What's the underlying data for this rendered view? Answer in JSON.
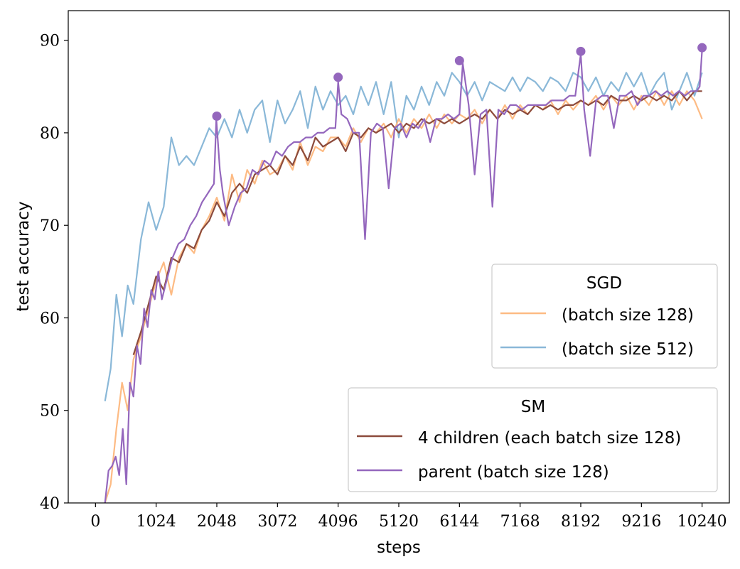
{
  "chart_data": {
    "type": "line",
    "xlabel": "steps",
    "ylabel": "test accuracy",
    "xlim": [
      -460,
      10700
    ],
    "ylim": [
      40,
      93.2
    ],
    "xticks": [
      0,
      1024,
      2048,
      3072,
      4096,
      5120,
      6144,
      7168,
      8192,
      9216,
      10240
    ],
    "yticks": [
      40,
      50,
      60,
      70,
      80,
      90
    ],
    "grid": false,
    "legends": [
      {
        "title": "SGD",
        "placement": "center-right",
        "entries": [
          {
            "label": "(batch size 128)",
            "series": "sgd128"
          },
          {
            "label": "(batch size 512)",
            "series": "sgd512"
          }
        ]
      },
      {
        "title": "SM",
        "placement": "lower-right",
        "entries": [
          {
            "label": "4 children (each batch size 128)",
            "series": "children"
          },
          {
            "label": "parent (batch size 128)",
            "series": "parent"
          }
        ]
      }
    ],
    "series": [
      {
        "key": "sgd512",
        "color": "#8ab8d8",
        "x": [
          160,
          256,
          352,
          448,
          544,
          640,
          768,
          896,
          1024,
          1152,
          1280,
          1408,
          1536,
          1664,
          1792,
          1920,
          2048,
          2176,
          2304,
          2432,
          2560,
          2688,
          2816,
          2944,
          3072,
          3200,
          3328,
          3456,
          3584,
          3712,
          3840,
          3968,
          4096,
          4224,
          4352,
          4480,
          4608,
          4736,
          4864,
          4992,
          5120,
          5248,
          5376,
          5504,
          5632,
          5760,
          5888,
          6016,
          6144,
          6272,
          6400,
          6528,
          6656,
          6784,
          6912,
          7040,
          7168,
          7296,
          7424,
          7552,
          7680,
          7808,
          7936,
          8064,
          8192,
          8320,
          8448,
          8576,
          8704,
          8832,
          8960,
          9088,
          9216,
          9344,
          9472,
          9600,
          9728,
          9856,
          9984,
          10112,
          10240
        ],
        "y": [
          51,
          54.5,
          62.5,
          58,
          63.5,
          61.5,
          68.5,
          72.5,
          69.5,
          72,
          79.5,
          76.5,
          77.5,
          76.5,
          78.5,
          80.5,
          79.5,
          81.5,
          79.5,
          82.5,
          80,
          82.5,
          83.5,
          79,
          83.5,
          81,
          82.5,
          84.5,
          80.5,
          85,
          82.5,
          84.5,
          83,
          84,
          82,
          85,
          83,
          85.5,
          82,
          85.5,
          79.5,
          84,
          82.5,
          85,
          83,
          85.5,
          84,
          86.5,
          85.5,
          84,
          85.5,
          83.5,
          85.5,
          85,
          84.5,
          86,
          84.5,
          86,
          85.5,
          84.5,
          86,
          85.5,
          84.5,
          86.5,
          86,
          84.5,
          86,
          84,
          85.5,
          84.5,
          86.5,
          85,
          86.5,
          84,
          85.5,
          86.5,
          82.5,
          84.5,
          86.5,
          84,
          86.5
        ]
      },
      {
        "key": "sgd128",
        "color": "#fdbb84",
        "x": [
          160,
          256,
          352,
          448,
          544,
          640,
          768,
          896,
          1024,
          1152,
          1280,
          1408,
          1536,
          1664,
          1792,
          1920,
          2048,
          2176,
          2304,
          2432,
          2560,
          2688,
          2816,
          2944,
          3072,
          3200,
          3328,
          3456,
          3584,
          3712,
          3840,
          3968,
          4096,
          4224,
          4352,
          4480,
          4608,
          4736,
          4864,
          4992,
          5120,
          5248,
          5376,
          5504,
          5632,
          5760,
          5888,
          6016,
          6144,
          6272,
          6400,
          6528,
          6656,
          6784,
          6912,
          7040,
          7168,
          7296,
          7424,
          7552,
          7680,
          7808,
          7936,
          8064,
          8192,
          8320,
          8448,
          8576,
          8704,
          8832,
          8960,
          9088,
          9216,
          9344,
          9472,
          9600,
          9728,
          9856,
          9984,
          10112,
          10240
        ],
        "y": [
          40,
          42,
          48,
          53,
          50,
          55.5,
          58,
          61,
          64,
          66,
          62.5,
          66.5,
          68,
          67,
          69.5,
          71,
          73,
          70.5,
          75.5,
          72.5,
          76,
          74.5,
          77,
          75.5,
          76,
          77.5,
          76,
          79,
          76.5,
          78.5,
          78,
          79.5,
          79.5,
          78.5,
          80.5,
          79,
          80.5,
          80,
          81,
          79.5,
          81.5,
          80,
          81.5,
          80.5,
          82,
          80.5,
          82,
          81,
          82,
          81.5,
          82.5,
          81,
          82.5,
          81.5,
          83,
          81.5,
          83,
          82,
          83,
          82.5,
          83.5,
          82,
          83.5,
          82.5,
          83.5,
          83,
          84,
          82.5,
          84,
          83,
          84,
          82.5,
          84,
          83,
          84.5,
          83,
          84.5,
          83,
          84.5,
          83.5,
          81.5
        ]
      },
      {
        "key": "children",
        "color": "#8c4b3c",
        "x": [
          640,
          768,
          896,
          1024,
          1152,
          1280,
          1408,
          1536,
          1664,
          1792,
          1920,
          2048,
          2176,
          2304,
          2432,
          2560,
          2688,
          2816,
          2944,
          3072,
          3200,
          3328,
          3456,
          3584,
          3712,
          3840,
          3968,
          4096,
          4224,
          4352,
          4480,
          4608,
          4736,
          4864,
          4992,
          5120,
          5248,
          5376,
          5504,
          5632,
          5760,
          5888,
          6016,
          6144,
          6272,
          6400,
          6528,
          6656,
          6784,
          6912,
          7040,
          7168,
          7296,
          7424,
          7552,
          7680,
          7808,
          7936,
          8064,
          8192,
          8320,
          8448,
          8576,
          8704,
          8832,
          8960,
          9088,
          9216,
          9344,
          9472,
          9600,
          9728,
          9856,
          9984,
          10112,
          10240
        ],
        "y": [
          56,
          58.5,
          61.5,
          64.5,
          63,
          66.5,
          66,
          68,
          67.5,
          69.5,
          70.5,
          72.5,
          71,
          73.5,
          74.5,
          73.5,
          75.5,
          76,
          76.5,
          75.5,
          77.5,
          76.5,
          78.5,
          77,
          79.5,
          78.5,
          79,
          79.5,
          78,
          80,
          79.5,
          80.5,
          80,
          80.5,
          81,
          80,
          81,
          80.5,
          81.5,
          81,
          81.5,
          81,
          81.5,
          81,
          81.5,
          82,
          81.5,
          82.5,
          81.5,
          82.5,
          82,
          82.5,
          82,
          83,
          82.5,
          83,
          82.5,
          83,
          83,
          83.5,
          83,
          83.5,
          83,
          84,
          83.5,
          83.5,
          84,
          83.5,
          84,
          83.5,
          84,
          83.5,
          84.5,
          83.5,
          84.5,
          84.5
        ]
      },
      {
        "key": "parent",
        "color": "#9467bd",
        "x": [
          160,
          220,
          280,
          340,
          400,
          460,
          520,
          580,
          640,
          700,
          760,
          820,
          880,
          940,
          1000,
          1060,
          1120,
          1200,
          1300,
          1400,
          1500,
          1600,
          1700,
          1800,
          1900,
          2000,
          2040,
          2100,
          2150,
          2250,
          2350,
          2450,
          2550,
          2650,
          2750,
          2850,
          2950,
          3050,
          3150,
          3250,
          3350,
          3450,
          3550,
          3650,
          3750,
          3850,
          3950,
          4050,
          4096,
          4150,
          4250,
          4350,
          4450,
          4550,
          4650,
          4750,
          4850,
          4950,
          5050,
          5150,
          5250,
          5350,
          5450,
          5550,
          5650,
          5750,
          5850,
          5950,
          6050,
          6144,
          6200,
          6300,
          6400,
          6500,
          6600,
          6700,
          6800,
          6900,
          7000,
          7100,
          7200,
          7300,
          7400,
          7500,
          7600,
          7700,
          7800,
          7900,
          8000,
          8100,
          8192,
          8250,
          8350,
          8450,
          8550,
          8650,
          8750,
          8850,
          8950,
          9050,
          9150,
          9250,
          9350,
          9450,
          9550,
          9650,
          9750,
          9850,
          9950,
          10050,
          10150,
          10200,
          10240
        ],
        "y": [
          40,
          43.5,
          44,
          45,
          43,
          48,
          42,
          53,
          51.5,
          57,
          55,
          61,
          59,
          63,
          62,
          65,
          62,
          64,
          66.5,
          68,
          68.5,
          70,
          71,
          72.5,
          73.5,
          74.5,
          81.5,
          76,
          73.5,
          70,
          72,
          73.5,
          74,
          76,
          75.5,
          77,
          76.5,
          78,
          77.5,
          78.5,
          79,
          79,
          79.5,
          79.5,
          80,
          80,
          80.5,
          80.5,
          85.5,
          82,
          81.5,
          80,
          80,
          68.5,
          80,
          81,
          80.5,
          74,
          80.5,
          81,
          79.5,
          81,
          80.5,
          81.5,
          79,
          81.5,
          81.5,
          82,
          81.5,
          82,
          87.5,
          83,
          75.5,
          82,
          82.5,
          72,
          82.5,
          82,
          83,
          83,
          82.5,
          83,
          83,
          83,
          83,
          83.5,
          83.5,
          83.5,
          84,
          84,
          88.5,
          82.5,
          77.5,
          83.5,
          84,
          84,
          80.5,
          84,
          84,
          84.5,
          83,
          84,
          84,
          84.5,
          84,
          84.5,
          84,
          84.5,
          84,
          84.5,
          84.5,
          85,
          89
        ]
      }
    ],
    "parent_markers": {
      "x": [
        2048,
        4096,
        6144,
        8192,
        10240
      ],
      "y": [
        81.8,
        86,
        87.8,
        88.8,
        89.2
      ]
    }
  }
}
